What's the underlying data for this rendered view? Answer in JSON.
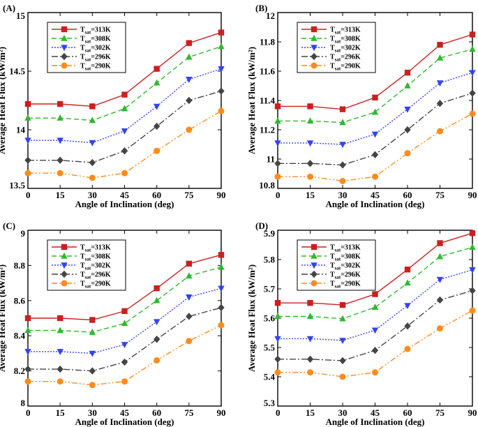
{
  "chart_data": [
    {
      "panel": "(A)",
      "type": "line",
      "xlabel": "Angle of Inclination (deg)",
      "ylabel": "Average Heat Flux  (kW/m²)",
      "x": [
        0,
        15,
        30,
        45,
        60,
        75,
        90
      ],
      "xticks": [
        "0",
        "15",
        "30",
        "45",
        "60",
        "75",
        "90"
      ],
      "xlim": [
        0,
        90
      ],
      "ylim": [
        13.5,
        15
      ],
      "yticks": [
        13.5,
        14,
        14.5,
        15
      ],
      "ytick_labels": [
        "13.5",
        "14",
        "14.5",
        "15"
      ],
      "legend_position": "top-left",
      "series": [
        {
          "name": "313K",
          "values": [
            14.22,
            14.22,
            14.2,
            14.3,
            14.52,
            14.74,
            14.83
          ]
        },
        {
          "name": "308K",
          "values": [
            14.1,
            14.1,
            14.08,
            14.18,
            14.4,
            14.62,
            14.71
          ]
        },
        {
          "name": "302K",
          "values": [
            13.91,
            13.91,
            13.89,
            13.99,
            14.2,
            14.43,
            14.52
          ]
        },
        {
          "name": "296K",
          "values": [
            13.74,
            13.74,
            13.72,
            13.82,
            14.03,
            14.25,
            14.33
          ]
        },
        {
          "name": "290K",
          "values": [
            13.63,
            13.63,
            13.59,
            13.63,
            13.82,
            14.0,
            14.16
          ]
        }
      ]
    },
    {
      "panel": "(B)",
      "type": "line",
      "xlabel": "Angle of Inclination (deg)",
      "ylabel": "Average Heat Flux  (kW/m²)",
      "x": [
        0,
        15,
        30,
        45,
        60,
        75,
        90
      ],
      "xticks": [
        "0",
        "15",
        "30",
        "45",
        "60",
        "75",
        "90"
      ],
      "xlim": [
        0,
        90
      ],
      "ylim": [
        10.8,
        12
      ],
      "yticks": [
        10.8,
        11,
        11.2,
        11.4,
        11.6,
        11.8,
        12
      ],
      "ytick_labels": [
        "10.8",
        "11",
        "11.2",
        "11.4",
        "11.6",
        "11.8",
        "12"
      ],
      "legend_position": "top-left",
      "series": [
        {
          "name": "313K",
          "values": [
            11.36,
            11.36,
            11.34,
            11.42,
            11.59,
            11.78,
            11.85
          ]
        },
        {
          "name": "308K",
          "values": [
            11.26,
            11.26,
            11.25,
            11.32,
            11.5,
            11.69,
            11.75
          ]
        },
        {
          "name": "302K",
          "values": [
            11.11,
            11.11,
            11.1,
            11.17,
            11.34,
            11.52,
            11.59
          ]
        },
        {
          "name": "296K",
          "values": [
            10.97,
            10.97,
            10.96,
            11.03,
            11.2,
            11.38,
            11.45
          ]
        },
        {
          "name": "290K",
          "values": [
            10.88,
            10.88,
            10.85,
            10.88,
            11.04,
            11.19,
            11.31
          ]
        }
      ]
    },
    {
      "panel": "(C)",
      "type": "line",
      "xlabel": "Angle of Inclination (deg)",
      "ylabel": "Average Heat Flux  (kW/m²)",
      "x": [
        0,
        15,
        30,
        45,
        60,
        75,
        90
      ],
      "xticks": [
        "0",
        "15",
        "30",
        "45",
        "60",
        "75",
        "90"
      ],
      "xlim": [
        0,
        90
      ],
      "ylim": [
        8,
        9
      ],
      "yticks": [
        8,
        8.2,
        8.4,
        8.6,
        8.8,
        9
      ],
      "ytick_labels": [
        "8",
        "8.2",
        "8.4",
        "8.6",
        "8.8",
        "9"
      ],
      "legend_position": "top-left",
      "series": [
        {
          "name": "313K",
          "values": [
            8.5,
            8.5,
            8.49,
            8.54,
            8.67,
            8.81,
            8.86
          ]
        },
        {
          "name": "308K",
          "values": [
            8.43,
            8.43,
            8.42,
            8.47,
            8.6,
            8.74,
            8.79
          ]
        },
        {
          "name": "302K",
          "values": [
            8.31,
            8.31,
            8.3,
            8.35,
            8.48,
            8.62,
            8.67
          ]
        },
        {
          "name": "296K",
          "values": [
            8.21,
            8.21,
            8.2,
            8.25,
            8.38,
            8.51,
            8.56
          ]
        },
        {
          "name": "290K",
          "values": [
            8.14,
            8.14,
            8.12,
            8.14,
            8.26,
            8.37,
            8.46
          ]
        }
      ]
    },
    {
      "panel": "(D)",
      "type": "line",
      "xlabel": "Angle of Inclination (deg)",
      "ylabel": "Average Heat Flux  (kW/m²)",
      "x": [
        0,
        15,
        30,
        45,
        60,
        75,
        90
      ],
      "xticks": [
        "0",
        "15",
        "30",
        "45",
        "60",
        "75",
        "90"
      ],
      "xlim": [
        0,
        90
      ],
      "ylim": [
        5.3,
        5.9
      ],
      "yticks": [
        5.3,
        5.4,
        5.5,
        5.6,
        5.7,
        5.8,
        5.9
      ],
      "ytick_labels": [
        "5.3",
        "5.4",
        "5.5",
        "5.6",
        "5.7",
        "5.8",
        "5.9"
      ],
      "legend_position": "top-left",
      "series": [
        {
          "name": "313K",
          "values": [
            5.652,
            5.652,
            5.645,
            5.682,
            5.766,
            5.856,
            5.89
          ]
        },
        {
          "name": "308K",
          "values": [
            5.606,
            5.606,
            5.598,
            5.637,
            5.72,
            5.81,
            5.842
          ]
        },
        {
          "name": "302K",
          "values": [
            5.53,
            5.53,
            5.524,
            5.559,
            5.643,
            5.732,
            5.765
          ]
        },
        {
          "name": "296K",
          "values": [
            5.46,
            5.46,
            5.455,
            5.49,
            5.573,
            5.662,
            5.694
          ]
        },
        {
          "name": "290K",
          "values": [
            5.415,
            5.415,
            5.4,
            5.415,
            5.495,
            5.565,
            5.626
          ]
        }
      ]
    }
  ],
  "legend": {
    "prefix": "T",
    "subscript": "sat",
    "separator": "="
  },
  "styles": [
    {
      "color": "#cc1f1f",
      "marker": "square",
      "dash": ""
    },
    {
      "color": "#2eb82e",
      "marker": "triangle-up",
      "dash": "7,4"
    },
    {
      "color": "#3344ee",
      "marker": "triangle-down",
      "dash": "2,2"
    },
    {
      "color": "#444444",
      "marker": "diamond",
      "dash": "9,3,2,3"
    },
    {
      "color": "#ff8c1a",
      "marker": "circle",
      "dash": "8,3,2,3,2,3"
    }
  ]
}
